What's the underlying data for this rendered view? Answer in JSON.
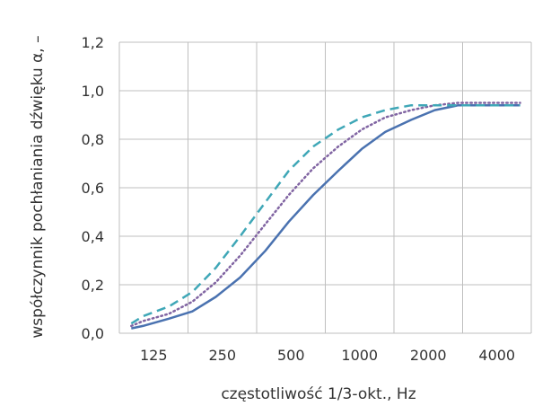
{
  "chart_data": {
    "type": "line",
    "title": "",
    "xlabel": "częstotliwość 1/3-okt., Hz",
    "ylabel": "współczynnik pochłaniania dźwięku α, –",
    "categories": [
      "125",
      "250",
      "500",
      "1000",
      "2000",
      "4000"
    ],
    "x": [
      100,
      125,
      160,
      200,
      250,
      315,
      400,
      500,
      630,
      800,
      1000,
      1250,
      1600,
      2000,
      2500,
      3150,
      4000,
      5000
    ],
    "ylim": [
      0.0,
      1.2
    ],
    "yticks": [
      "0,0",
      "0,2",
      "0,4",
      "0,6",
      "0,8",
      "1,0",
      "1,2"
    ],
    "grid": true,
    "series": [
      {
        "color": "#4a72b0",
        "style": "solid",
        "values": [
          0.02,
          0.03,
          0.06,
          0.09,
          0.15,
          0.23,
          0.34,
          0.46,
          0.57,
          0.67,
          0.76,
          0.83,
          0.88,
          0.92,
          0.94,
          0.94,
          0.94,
          0.94
        ]
      },
      {
        "color": "#8064a2",
        "style": "dotted",
        "values": [
          0.03,
          0.05,
          0.08,
          0.13,
          0.21,
          0.32,
          0.45,
          0.57,
          0.68,
          0.77,
          0.84,
          0.89,
          0.92,
          0.94,
          0.95,
          0.95,
          0.95,
          0.95
        ]
      },
      {
        "color": "#3fa7b7",
        "style": "dashed",
        "values": [
          0.04,
          0.07,
          0.11,
          0.17,
          0.27,
          0.4,
          0.54,
          0.67,
          0.77,
          0.84,
          0.89,
          0.92,
          0.94,
          0.94,
          0.94,
          0.94,
          0.94,
          0.94
        ]
      }
    ]
  }
}
